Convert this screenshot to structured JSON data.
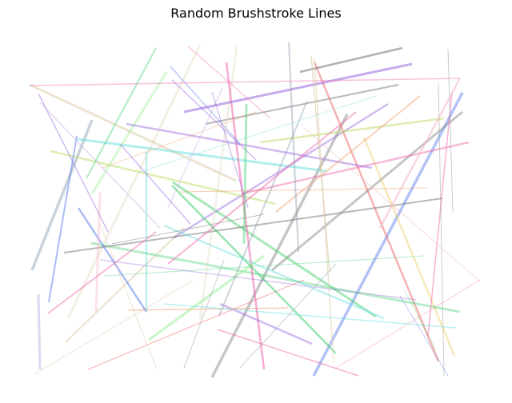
{
  "figure": {
    "title": "Random Brushstroke Lines"
  },
  "palette": {
    "gray": "#808080",
    "green": "#33cc66",
    "pink": "#ee66aa",
    "purple": "#9966dd",
    "blue": "#5577ee",
    "cyan": "#66dddd",
    "red": "#ee5555",
    "tan": "#d9c9a3",
    "yellowgreen": "#bbdd66",
    "orange": "#ee9966",
    "lightpink": "#f4b6c6",
    "slate": "#8899aa",
    "lavender": "#c8b4e6",
    "beige": "#e6ddc8",
    "lightgreen": "#99ee99",
    "gold": "#eecc66"
  }
}
